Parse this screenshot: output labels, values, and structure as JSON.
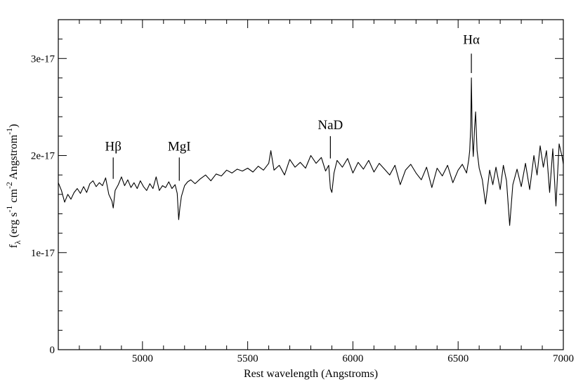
{
  "chart_data": {
    "type": "line",
    "title": "",
    "xlabel": "Rest wavelength (Angstroms)",
    "ylabel_parts": [
      "f",
      "λ",
      " (erg s",
      "-1",
      " cm",
      "-2",
      " Angstrom",
      "-1",
      ")"
    ],
    "xlim": [
      4600,
      7000
    ],
    "ylim": [
      0,
      3.4e-17
    ],
    "x_ticks": [
      5000,
      5500,
      6000,
      6500,
      7000
    ],
    "x_tick_labels": [
      "5000",
      "5500",
      "6000",
      "6500",
      "7000"
    ],
    "y_ticks": [
      0,
      1e-17,
      2e-17,
      3e-17
    ],
    "y_tick_labels": [
      "0",
      "1e-17",
      "2e-17",
      "3e-17"
    ],
    "x_minor_step": 100,
    "y_minor_step": 2e-18,
    "grid": false,
    "line_color": "#000000",
    "annotations": [
      {
        "label": "Hβ",
        "x": 4861,
        "y_line": [
          1.76e-17,
          1.98e-17
        ],
        "y_text": 2.05e-17
      },
      {
        "label": "MgI",
        "x": 5175,
        "y_line": [
          1.74e-17,
          1.98e-17
        ],
        "y_text": 2.05e-17
      },
      {
        "label": "NaD",
        "x": 5893,
        "y_line": [
          1.97e-17,
          2.2e-17
        ],
        "y_text": 2.27e-17
      },
      {
        "label": "Hα",
        "x": 6563,
        "y_line": [
          2.85e-17,
          3.05e-17
        ],
        "y_text": 3.15e-17
      }
    ],
    "series": [
      {
        "x": [
          4600,
          4615,
          4630,
          4645,
          4660,
          4675,
          4690,
          4705,
          4720,
          4735,
          4750,
          4765,
          4780,
          4795,
          4810,
          4825,
          4840,
          4855,
          4861,
          4870,
          4885,
          4900,
          4915,
          4930,
          4945,
          4960,
          4975,
          4990,
          5005,
          5020,
          5035,
          5050,
          5065,
          5080,
          5095,
          5110,
          5125,
          5140,
          5155,
          5165,
          5172,
          5178,
          5185,
          5200,
          5215,
          5230,
          5250,
          5275,
          5300,
          5325,
          5350,
          5375,
          5400,
          5425,
          5450,
          5475,
          5500,
          5525,
          5550,
          5575,
          5600,
          5610,
          5625,
          5650,
          5675,
          5700,
          5725,
          5750,
          5775,
          5800,
          5825,
          5850,
          5870,
          5885,
          5893,
          5900,
          5910,
          5925,
          5950,
          5975,
          6000,
          6025,
          6050,
          6075,
          6100,
          6125,
          6150,
          6175,
          6200,
          6225,
          6250,
          6275,
          6300,
          6325,
          6350,
          6375,
          6400,
          6425,
          6450,
          6475,
          6500,
          6520,
          6540,
          6550,
          6555,
          6560,
          6563,
          6567,
          6572,
          6578,
          6583,
          6590,
          6600,
          6615,
          6630,
          6650,
          6665,
          6680,
          6700,
          6715,
          6730,
          6745,
          6760,
          6780,
          6800,
          6820,
          6840,
          6860,
          6875,
          6890,
          6905,
          6920,
          6935,
          6950,
          6965,
          6980,
          6995,
          7000
        ],
        "y": [
          1.72e-17,
          1.64e-17,
          1.52e-17,
          1.6e-17,
          1.55e-17,
          1.62e-17,
          1.66e-17,
          1.61e-17,
          1.68e-17,
          1.62e-17,
          1.71e-17,
          1.74e-17,
          1.68e-17,
          1.72e-17,
          1.69e-17,
          1.77e-17,
          1.6e-17,
          1.53e-17,
          1.46e-17,
          1.64e-17,
          1.7e-17,
          1.78e-17,
          1.69e-17,
          1.75e-17,
          1.67e-17,
          1.72e-17,
          1.66e-17,
          1.74e-17,
          1.68e-17,
          1.64e-17,
          1.71e-17,
          1.66e-17,
          1.78e-17,
          1.64e-17,
          1.69e-17,
          1.67e-17,
          1.73e-17,
          1.66e-17,
          1.7e-17,
          1.61e-17,
          1.34e-17,
          1.47e-17,
          1.58e-17,
          1.69e-17,
          1.73e-17,
          1.75e-17,
          1.71e-17,
          1.76e-17,
          1.8e-17,
          1.74e-17,
          1.81e-17,
          1.79e-17,
          1.85e-17,
          1.82e-17,
          1.86e-17,
          1.84e-17,
          1.87e-17,
          1.83e-17,
          1.89e-17,
          1.85e-17,
          1.92e-17,
          2.05e-17,
          1.85e-17,
          1.9e-17,
          1.8e-17,
          1.96e-17,
          1.88e-17,
          1.93e-17,
          1.87e-17,
          2e-17,
          1.92e-17,
          1.98e-17,
          1.84e-17,
          1.9e-17,
          1.66e-17,
          1.62e-17,
          1.82e-17,
          1.95e-17,
          1.88e-17,
          1.97e-17,
          1.82e-17,
          1.93e-17,
          1.86e-17,
          1.95e-17,
          1.83e-17,
          1.92e-17,
          1.86e-17,
          1.8e-17,
          1.9e-17,
          1.7e-17,
          1.85e-17,
          1.91e-17,
          1.82e-17,
          1.75e-17,
          1.88e-17,
          1.67e-17,
          1.87e-17,
          1.79e-17,
          1.9e-17,
          1.72e-17,
          1.85e-17,
          1.91e-17,
          1.82e-17,
          1.95e-17,
          2.05e-17,
          2.3e-17,
          2.8e-17,
          2.2e-17,
          1.99e-17,
          2.28e-17,
          2.45e-17,
          2.05e-17,
          1.87e-17,
          1.75e-17,
          1.5e-17,
          1.85e-17,
          1.7e-17,
          1.88e-17,
          1.65e-17,
          1.9e-17,
          1.74e-17,
          1.28e-17,
          1.7e-17,
          1.86e-17,
          1.68e-17,
          1.92e-17,
          1.65e-17,
          2e-17,
          1.8e-17,
          2.1e-17,
          1.88e-17,
          2.05e-17,
          1.62e-17,
          2.07e-17,
          1.48e-17,
          2.12e-17,
          1.98e-17,
          1.91e-17
        ]
      }
    ]
  }
}
